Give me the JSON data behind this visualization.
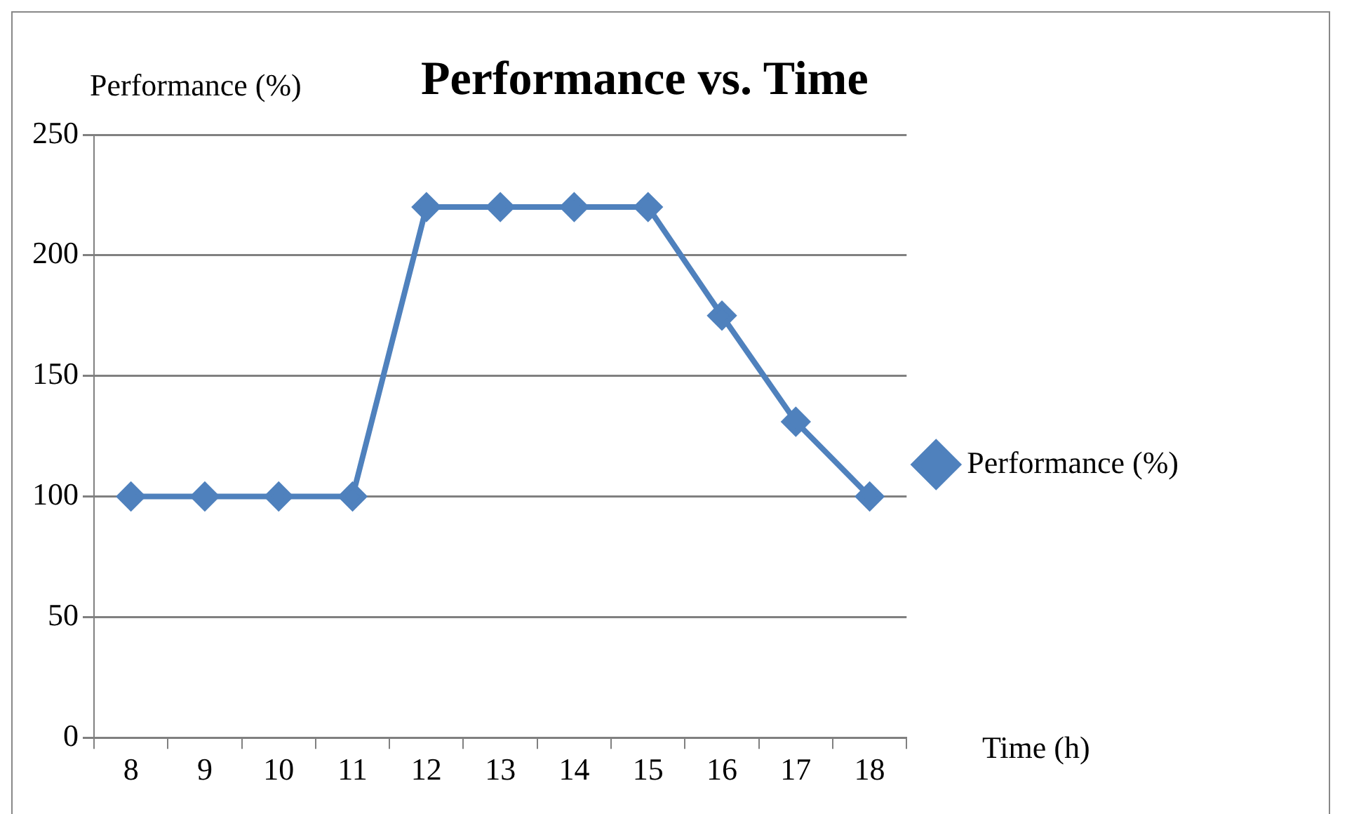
{
  "chart_data": {
    "type": "line",
    "title": "Performance vs. Time",
    "xlabel": "Time (h)",
    "ylabel": "Performance (%)",
    "categories": [
      "8",
      "9",
      "10",
      "11",
      "12",
      "13",
      "14",
      "15",
      "16",
      "17",
      "18"
    ],
    "series": [
      {
        "name": "Performance (%)",
        "color": "#4f81bd",
        "values": [
          100,
          100,
          100,
          100,
          220,
          220,
          220,
          220,
          175,
          131,
          100
        ]
      }
    ],
    "ylim": [
      0,
      250
    ],
    "yticks": [
      0,
      50,
      100,
      150,
      200,
      250
    ],
    "grid": "y",
    "legend": "right",
    "marker": "diamond",
    "line_style": "solid"
  }
}
